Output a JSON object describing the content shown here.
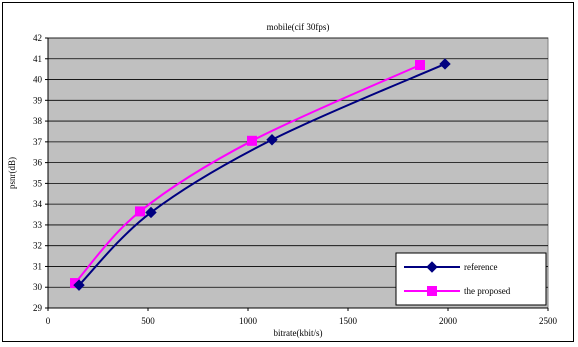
{
  "chart_data": {
    "type": "line",
    "title": "mobile(cif 30fps)",
    "xlabel": "bitrate(kbit/s)",
    "ylabel": "psnr(dB)",
    "xlim": [
      0,
      2500
    ],
    "ylim": [
      29,
      42
    ],
    "xticks": [
      0,
      500,
      1000,
      1500,
      2000,
      2500
    ],
    "yticks": [
      29,
      30,
      31,
      32,
      33,
      34,
      35,
      36,
      37,
      38,
      39,
      40,
      41,
      42
    ],
    "grid": true,
    "plot_background": "#c0c0c0",
    "legend_position": "bottom-right",
    "series": [
      {
        "name": "reference",
        "color": "#000080",
        "marker": "diamond",
        "points": [
          [
            155,
            30.1
          ],
          [
            515,
            33.6
          ],
          [
            1120,
            37.1
          ],
          [
            1985,
            40.75
          ]
        ]
      },
      {
        "name": "the proposed",
        "color": "#ff00ff",
        "marker": "square",
        "points": [
          [
            135,
            30.2
          ],
          [
            460,
            33.65
          ],
          [
            1020,
            37.05
          ],
          [
            1860,
            40.7
          ]
        ]
      }
    ]
  }
}
